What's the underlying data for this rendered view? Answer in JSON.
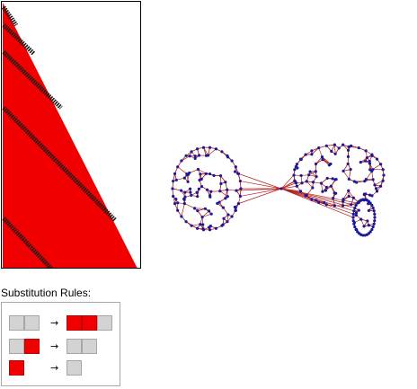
{
  "evolution": {
    "fill_color": "#f00000",
    "stripe_color": "#1a1a1a",
    "frame_color": "#000000"
  },
  "network": {
    "node_color": "#1a1a99",
    "edge_color": "#b22222"
  },
  "rules_title": "Substitution Rules:",
  "rules": [
    {
      "lhs": [
        "gray",
        "gray"
      ],
      "arrow": "→",
      "rhs": [
        "red",
        "red",
        "gray"
      ]
    },
    {
      "lhs": [
        "gray",
        "red"
      ],
      "arrow": "→",
      "rhs": [
        "gray",
        "gray"
      ]
    },
    {
      "lhs": [
        "red"
      ],
      "arrow": "→",
      "rhs": [
        "gray"
      ]
    }
  ]
}
